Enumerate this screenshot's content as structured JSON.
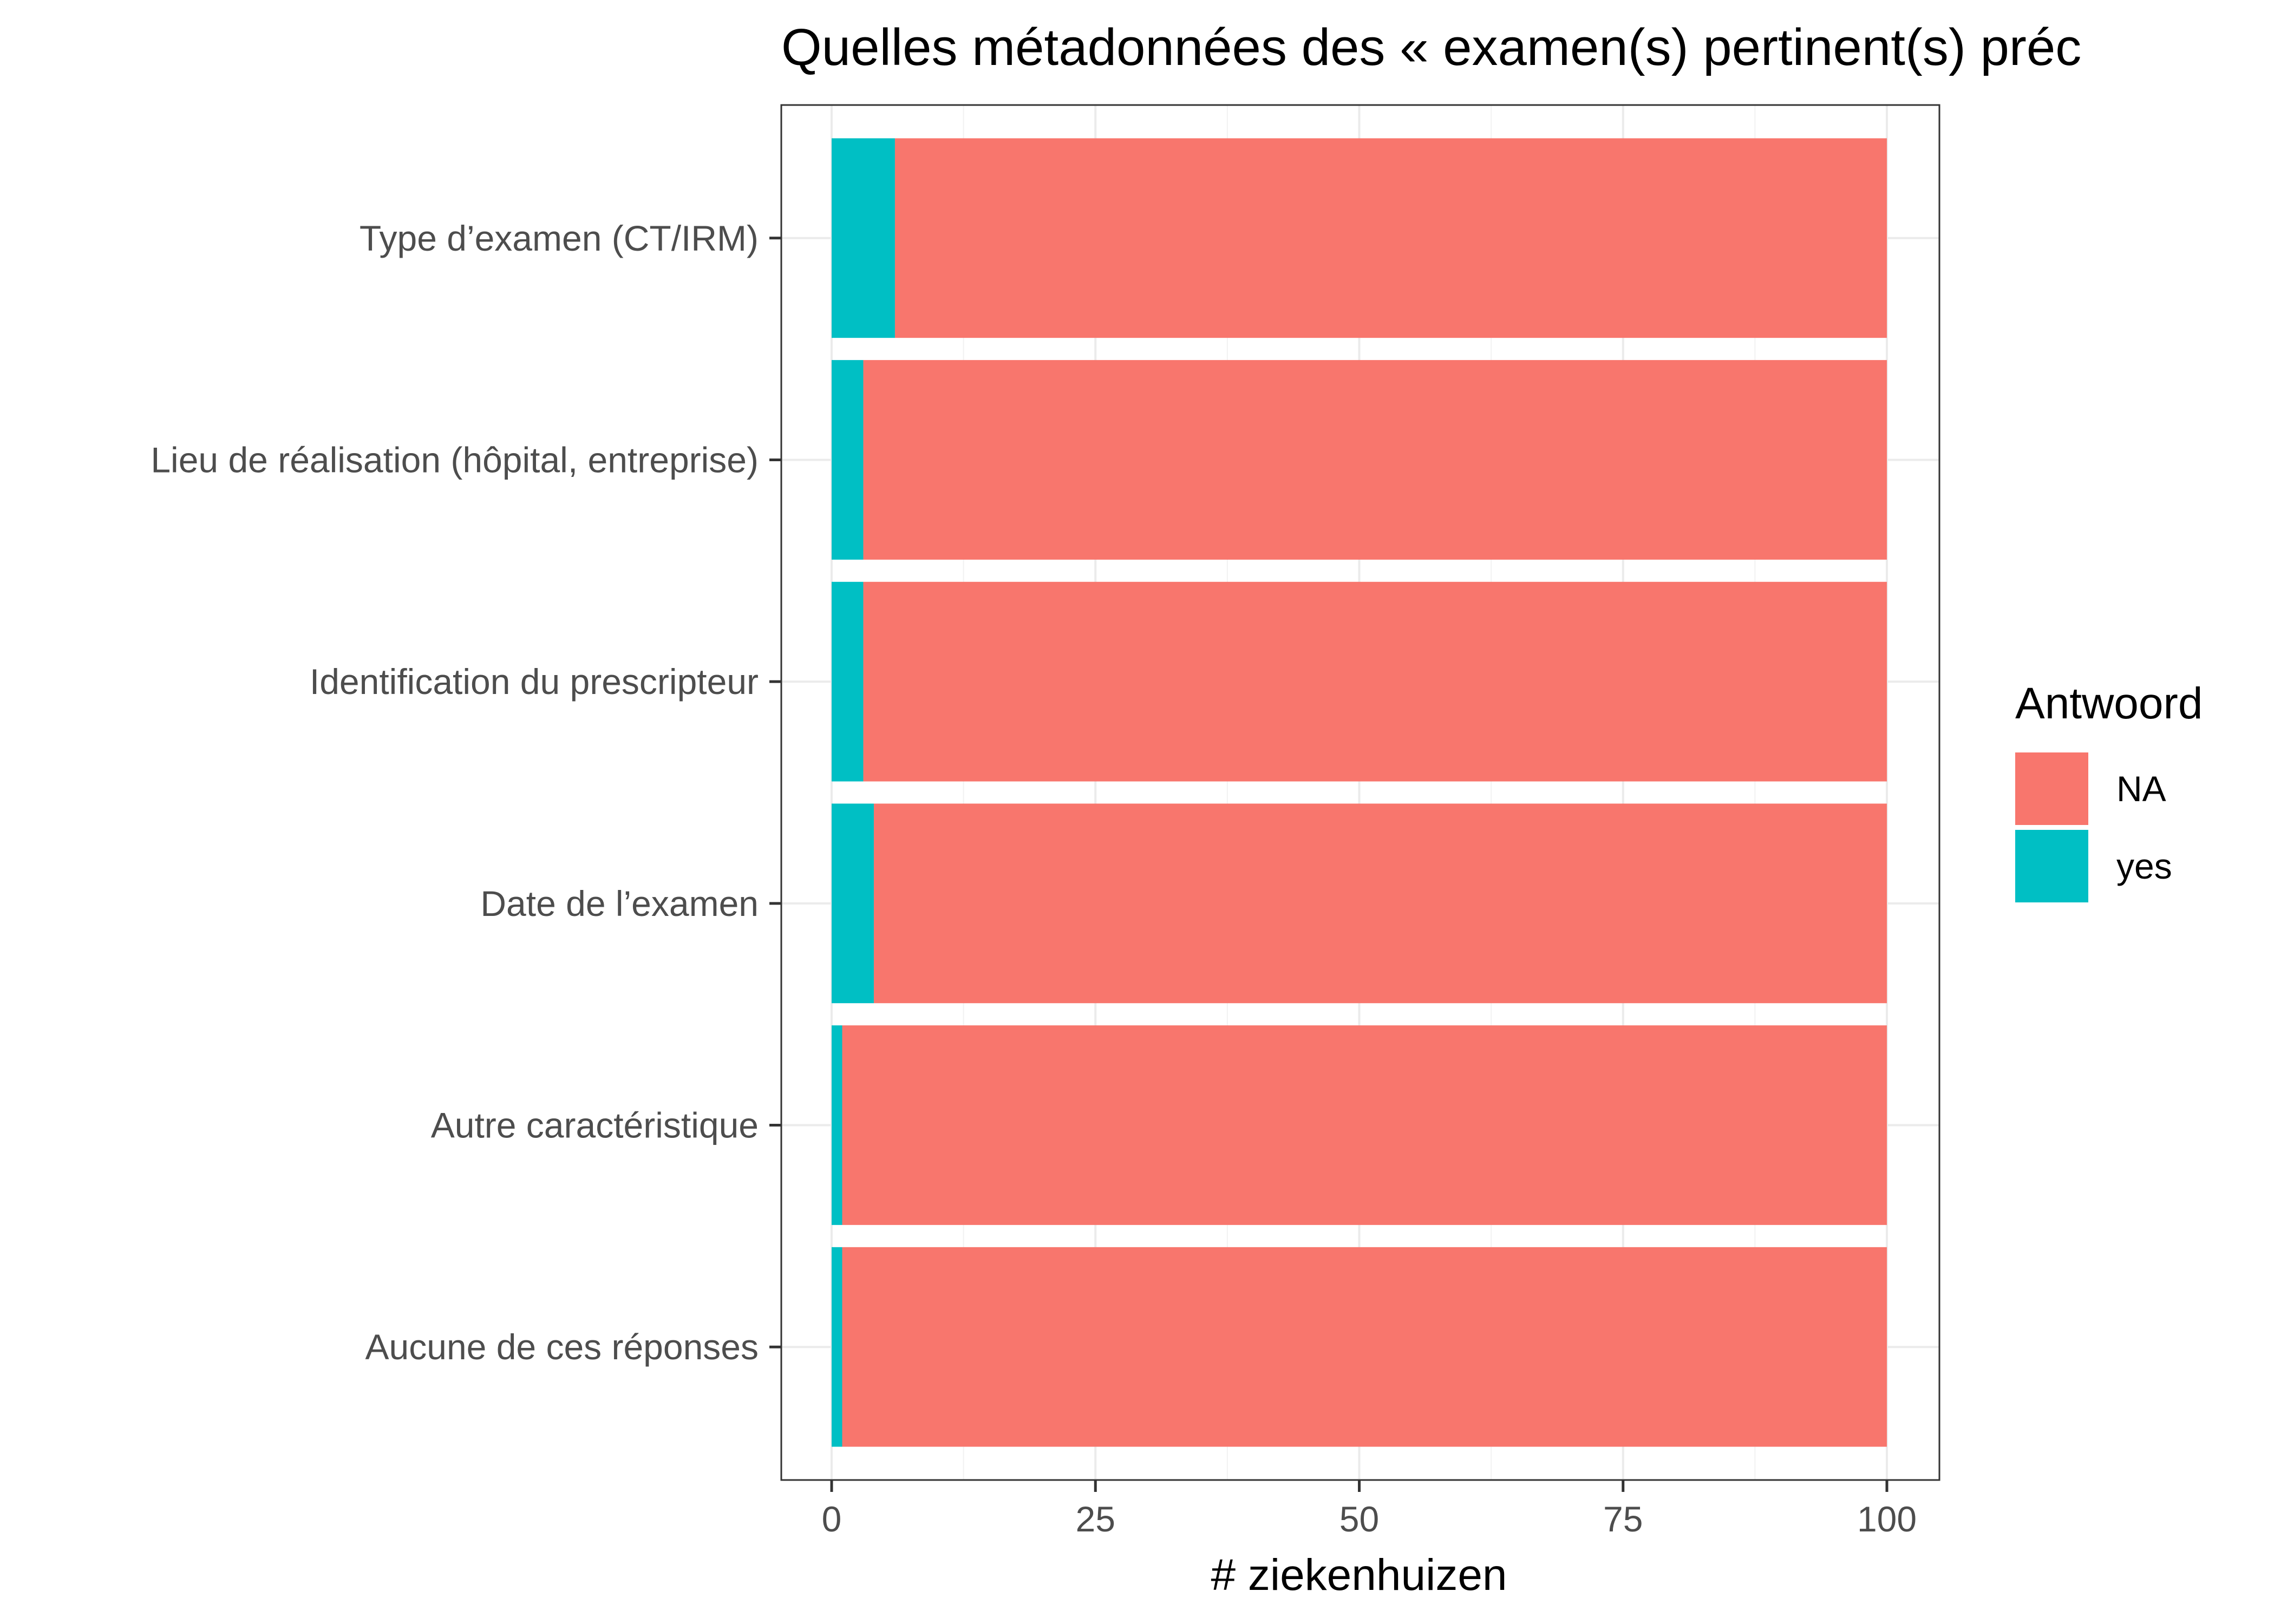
{
  "chart_data": {
    "type": "bar",
    "orientation": "horizontal",
    "stacked": true,
    "title": "Quelles métadonnées des « examen(s) pertinent(s) préc",
    "xlabel": "# ziekenhuizen",
    "ylabel": "",
    "xlim": [
      0,
      100
    ],
    "x_ticks": [
      0,
      25,
      50,
      75,
      100
    ],
    "grid": true,
    "legend_position": "right",
    "legend_title": "Antwoord",
    "categories": [
      "Type d’examen (CT/IRM)",
      "Lieu de réalisation (hôpital, entreprise)",
      "Identification du prescripteur",
      "Date de l’examen",
      "Autre caractéristique",
      "Aucune de ces réponses"
    ],
    "series": [
      {
        "name": "yes",
        "color": "#00BFC4",
        "values": [
          6,
          3,
          3,
          4,
          1,
          1
        ]
      },
      {
        "name": "NA",
        "color": "#F8766D",
        "values": [
          94,
          97,
          97,
          96,
          99,
          99
        ]
      }
    ],
    "legend_order": [
      "NA",
      "yes"
    ]
  }
}
